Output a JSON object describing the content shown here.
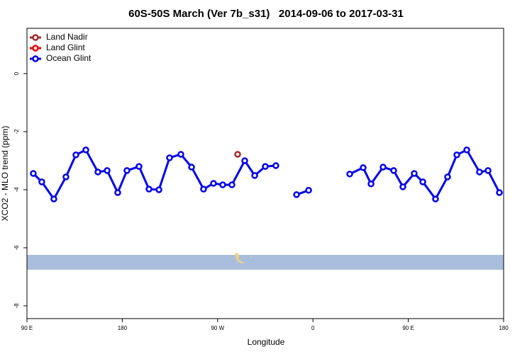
{
  "chart_data": {
    "type": "line",
    "title": "60S-50S March (Ver 7b_s31)   2014-09-06 to 2017-03-31",
    "x_label": "Longitude",
    "y_label": "XCO2 - MLO trend (ppm)",
    "xlim": [
      90,
      540
    ],
    "xticks": [
      {
        "value": 90,
        "label": "90 E"
      },
      {
        "value": 180,
        "label": "180"
      },
      {
        "value": 270,
        "label": "90 W"
      },
      {
        "value": 360,
        "label": "0"
      },
      {
        "value": 450,
        "label": "90 E"
      },
      {
        "value": 540,
        "label": "180"
      }
    ],
    "ylim": [
      -8.44,
      1.56
    ],
    "yticks": [
      0,
      -2,
      -4,
      -6,
      -8
    ],
    "legend": "top-left",
    "series": [
      {
        "name": "Land Nadir",
        "color": "#a52a2a",
        "x": [
          288.9
        ],
        "values": [
          -2.78
        ]
      },
      {
        "name": "Land Glint",
        "color": "#ee0000",
        "x": [],
        "values": []
      },
      {
        "name": "Ocean Glint",
        "color": "#0000ee",
        "x": [
          96,
          104,
          115.4,
          126.8,
          136.2,
          145.6,
          157,
          165.7,
          175.7,
          184.4,
          195.8,
          205.2,
          214.6,
          224.6,
          235.3,
          245.4,
          256.7,
          266.1,
          274.8,
          283.5,
          295.6,
          305,
          315,
          325,
          null,
          344.5,
          355.9,
          null,
          394.7,
          407.4,
          414.8,
          426.2,
          436.2,
          444.9,
          455.6,
          463.7,
          475.7,
          487.1,
          495.8,
          505.2,
          517.2,
          525.3,
          536
        ],
        "values": [
          -3.44,
          -3.73,
          -4.32,
          -3.56,
          -2.8,
          -2.63,
          -3.39,
          -3.34,
          -4.1,
          -3.34,
          -3.2,
          -3.98,
          -4.0,
          -2.9,
          -2.78,
          -3.22,
          -3.98,
          -3.78,
          -3.83,
          -3.83,
          -3.0,
          -3.51,
          -3.2,
          -3.17,
          null,
          -4.17,
          -4.02,
          null,
          -3.46,
          -3.24,
          -3.8,
          -3.22,
          -3.34,
          -3.9,
          -3.44,
          -3.73,
          -4.32,
          -3.56,
          -2.8,
          -2.63,
          -3.39,
          -3.34,
          -4.1
        ]
      }
    ]
  }
}
